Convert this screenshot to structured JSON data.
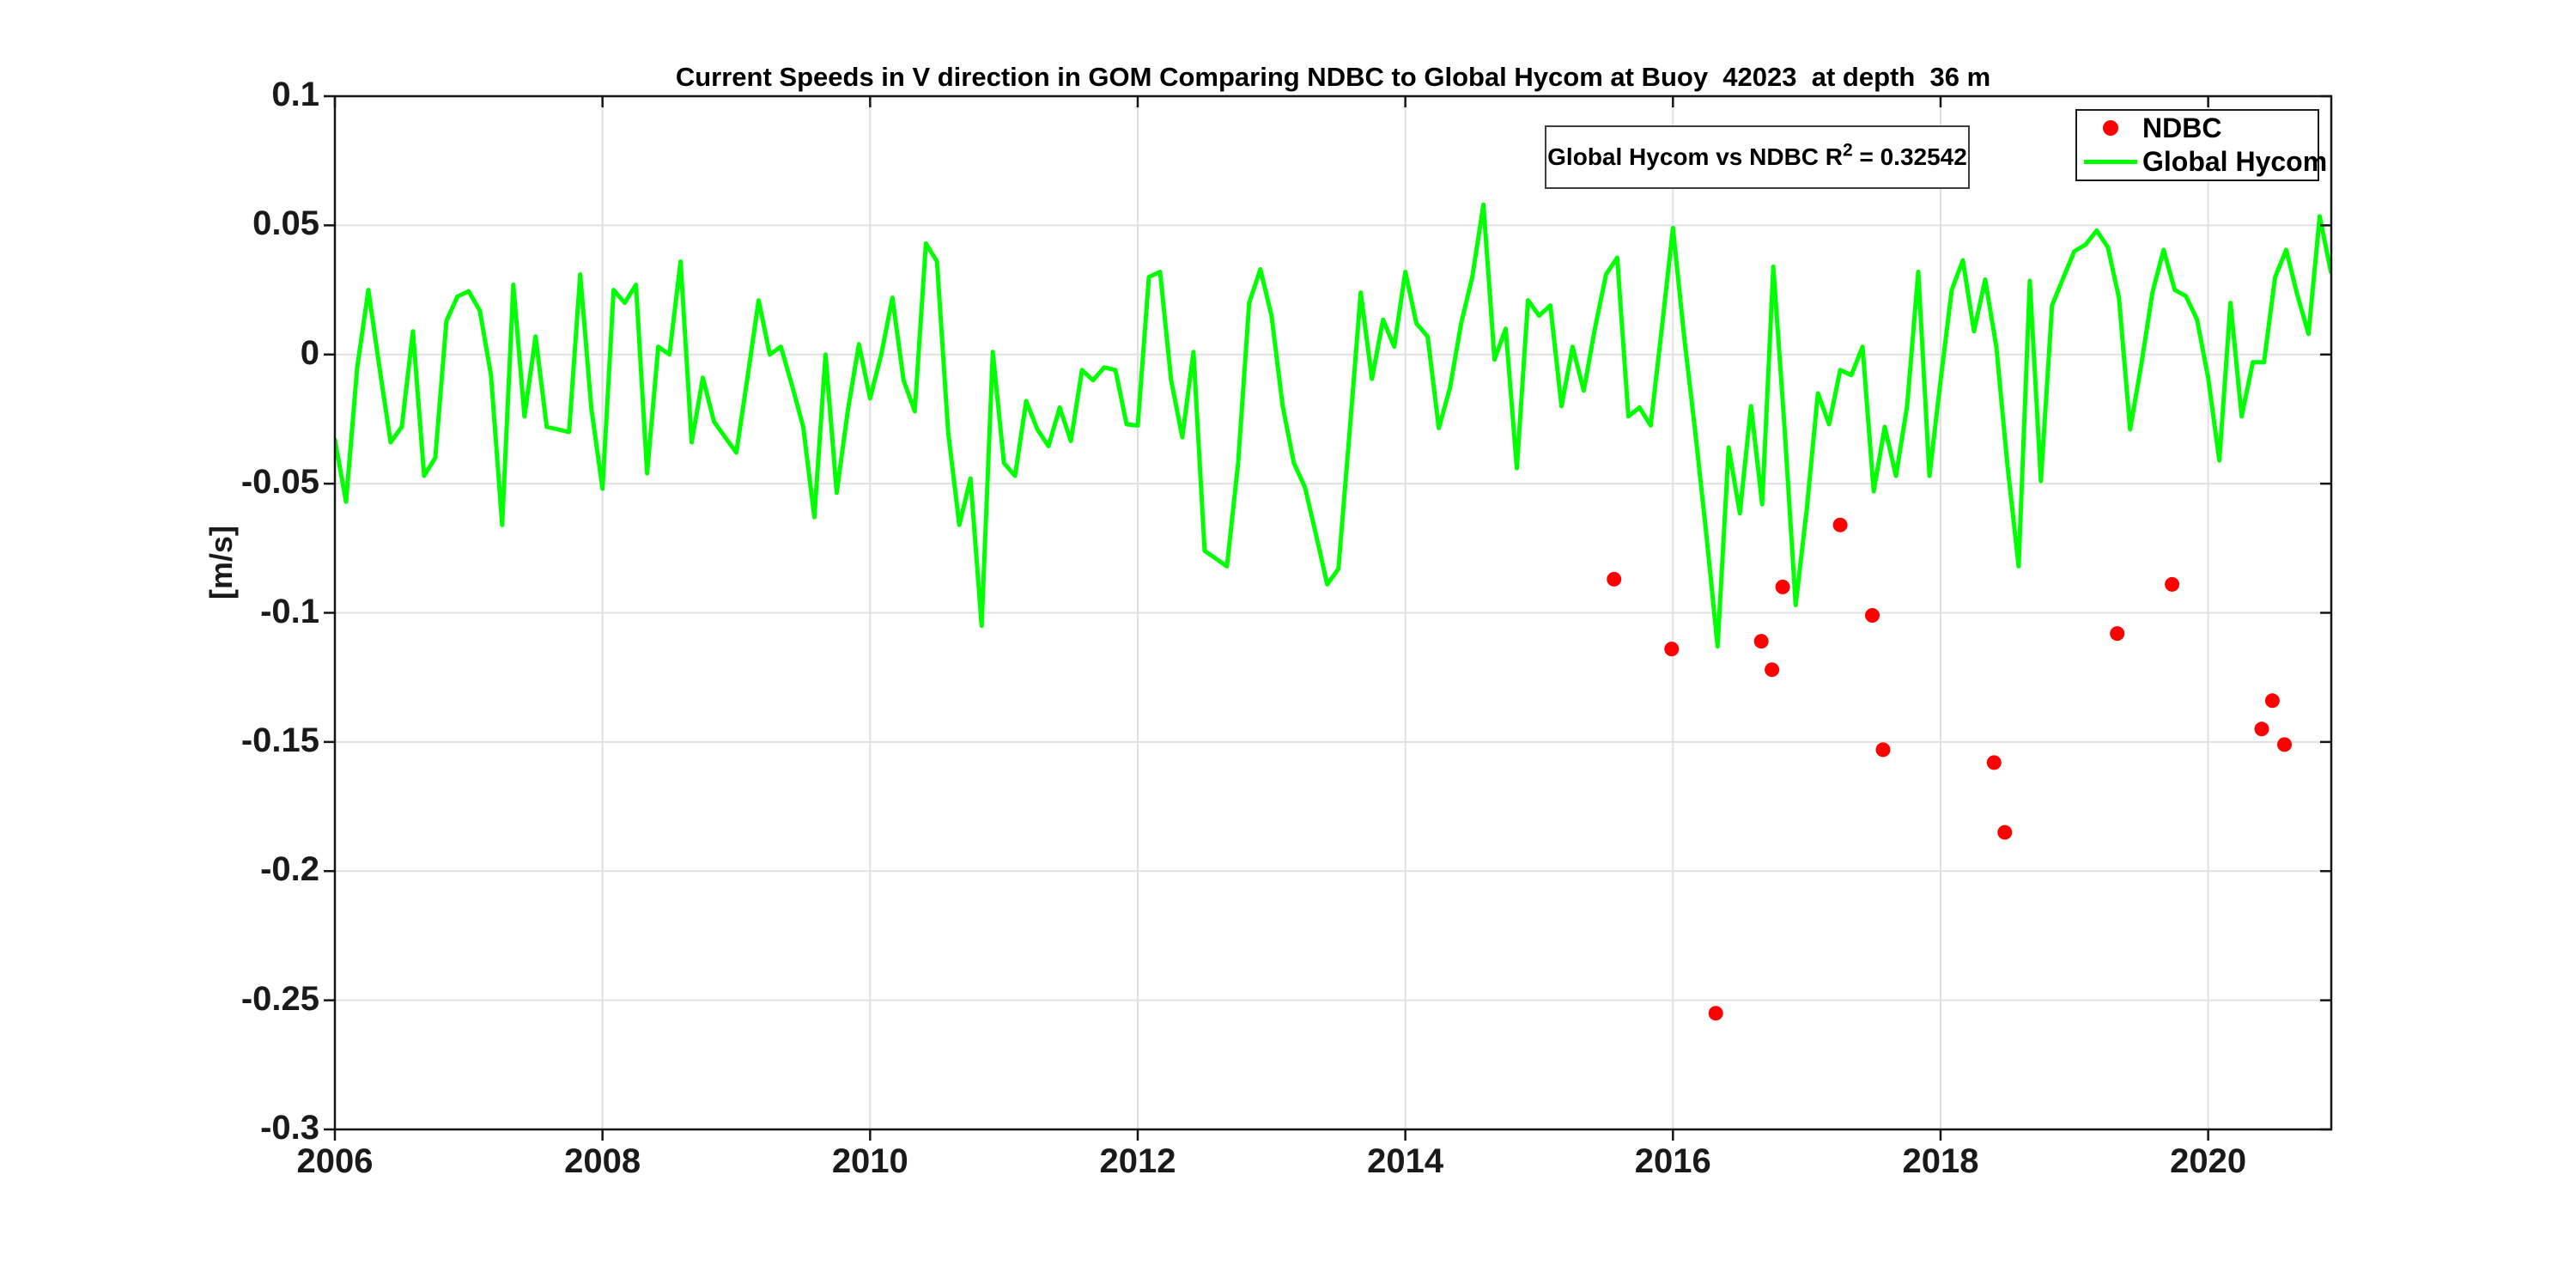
{
  "title": "Current Speeds in V direction in GOM Comparing NDBC to Global Hycom at Buoy  42023  at depth  36 m",
  "ylabel": "[m/s]",
  "annotation": {
    "prefix": "Global Hycom vs NDBC R",
    "sup": "2",
    "suffix": " = 0.32542"
  },
  "legend": {
    "items": [
      {
        "label": "NDBC",
        "marker": "dot",
        "color": "#ff0000"
      },
      {
        "label": "Global Hycom",
        "marker": "line",
        "color": "#00ff00"
      }
    ]
  },
  "colors": {
    "hycom": "#00ff00",
    "ndbc": "#ff0000",
    "grid": "#e0e0e0",
    "axis": "#151515",
    "text": "#1a1a1a",
    "background": "#ffffff"
  },
  "chart_data": {
    "type": "line+scatter",
    "title": "Current Speeds in V direction in GOM Comparing NDBC to Global Hycom at Buoy  42023  at depth  36 m",
    "xlabel": "",
    "ylabel": "[m/s]",
    "xlim": [
      2006,
      2020.92
    ],
    "ylim": [
      -0.3,
      0.1
    ],
    "xticks": [
      2006,
      2008,
      2010,
      2012,
      2014,
      2016,
      2018,
      2020
    ],
    "xtick_labels": [
      "2006",
      "2008",
      "2010",
      "2012",
      "2014",
      "2016",
      "2018",
      "2020"
    ],
    "yticks": [
      0.1,
      0.05,
      0,
      -0.05,
      -0.1,
      -0.15,
      -0.2,
      -0.25,
      -0.3
    ],
    "ytick_labels": [
      "0.1",
      "0.05",
      "0",
      "-0.05",
      "-0.1",
      "-0.15",
      "-0.2",
      "-0.25",
      "-0.3"
    ],
    "grid": true,
    "legend_position": "northeast",
    "r_squared": 0.32542,
    "annotation_text": "Global Hycom vs NDBC R^2 = 0.32542",
    "series": [
      {
        "name": "Global Hycom",
        "type": "line",
        "color": "#00ff00",
        "line_width": 5,
        "x_start_year": 2006.0,
        "x_step_months": 1,
        "values": [
          -0.033,
          -0.057,
          -0.005,
          0.025,
          -0.005,
          -0.034,
          -0.028,
          0.009,
          -0.047,
          -0.04,
          0.013,
          0.0225,
          0.0245,
          0.017,
          -0.008,
          -0.066,
          0.027,
          -0.024,
          0.007,
          -0.028,
          -0.029,
          -0.03,
          0.031,
          -0.021,
          -0.052,
          0.025,
          0.02,
          0.027,
          -0.046,
          0.003,
          0.0,
          0.036,
          -0.034,
          -0.009,
          -0.026,
          -0.032,
          -0.038,
          -0.009,
          0.021,
          0.0,
          0.003,
          -0.012,
          -0.028,
          -0.063,
          0.0,
          -0.0535,
          -0.0216,
          0.004,
          -0.017,
          0.0,
          0.022,
          -0.01,
          -0.022,
          0.043,
          0.036,
          -0.03,
          -0.066,
          -0.048,
          -0.105,
          0.001,
          -0.042,
          -0.047,
          -0.018,
          -0.029,
          -0.0355,
          -0.0205,
          -0.0335,
          -0.006,
          -0.01,
          -0.005,
          -0.006,
          -0.027,
          -0.0275,
          0.03,
          0.032,
          -0.01,
          -0.032,
          0.001,
          -0.076,
          -0.079,
          -0.082,
          -0.042,
          0.02,
          0.033,
          0.015,
          -0.02,
          -0.042,
          -0.0515,
          -0.07,
          -0.089,
          -0.083,
          -0.03,
          0.024,
          -0.0095,
          0.0135,
          0.003,
          0.032,
          0.012,
          0.007,
          -0.0285,
          -0.013,
          0.012,
          0.03,
          0.058,
          -0.002,
          0.01,
          -0.044,
          0.021,
          0.015,
          0.019,
          -0.02,
          0.003,
          -0.014,
          0.01,
          0.031,
          0.0375,
          -0.024,
          -0.0205,
          -0.0275,
          0.01,
          0.049,
          0.007,
          -0.03,
          -0.07,
          -0.113,
          -0.036,
          -0.0615,
          -0.02,
          -0.058,
          0.034,
          -0.028,
          -0.097,
          -0.06,
          -0.015,
          -0.027,
          -0.006,
          -0.008,
          0.003,
          -0.053,
          -0.028,
          -0.047,
          -0.02,
          0.032,
          -0.047,
          -0.01,
          0.025,
          0.0365,
          0.009,
          0.029,
          0.003,
          -0.043,
          -0.082,
          0.0285,
          -0.049,
          0.019,
          0.0296,
          0.04,
          0.0425,
          0.048,
          0.0415,
          0.022,
          -0.029,
          -0.004,
          0.024,
          0.0405,
          0.025,
          0.0226,
          0.0136,
          -0.009,
          -0.041,
          0.02,
          -0.024,
          -0.003,
          -0.003,
          0.03,
          0.0405,
          0.023,
          0.008,
          0.0535,
          0.032
        ]
      },
      {
        "name": "NDBC",
        "type": "scatter",
        "color": "#ff0000",
        "marker_radius": 8.5,
        "points": [
          [
            2015.56,
            -0.087
          ],
          [
            2015.99,
            -0.114
          ],
          [
            2016.32,
            -0.255
          ],
          [
            2016.66,
            -0.111
          ],
          [
            2016.74,
            -0.122
          ],
          [
            2016.82,
            -0.09
          ],
          [
            2017.25,
            -0.066
          ],
          [
            2017.49,
            -0.101
          ],
          [
            2017.57,
            -0.153
          ],
          [
            2018.4,
            -0.158
          ],
          [
            2018.48,
            -0.185
          ],
          [
            2019.32,
            -0.108
          ],
          [
            2019.73,
            -0.089
          ],
          [
            2020.4,
            -0.145
          ],
          [
            2020.48,
            -0.134
          ],
          [
            2020.57,
            -0.151
          ]
        ]
      }
    ]
  }
}
